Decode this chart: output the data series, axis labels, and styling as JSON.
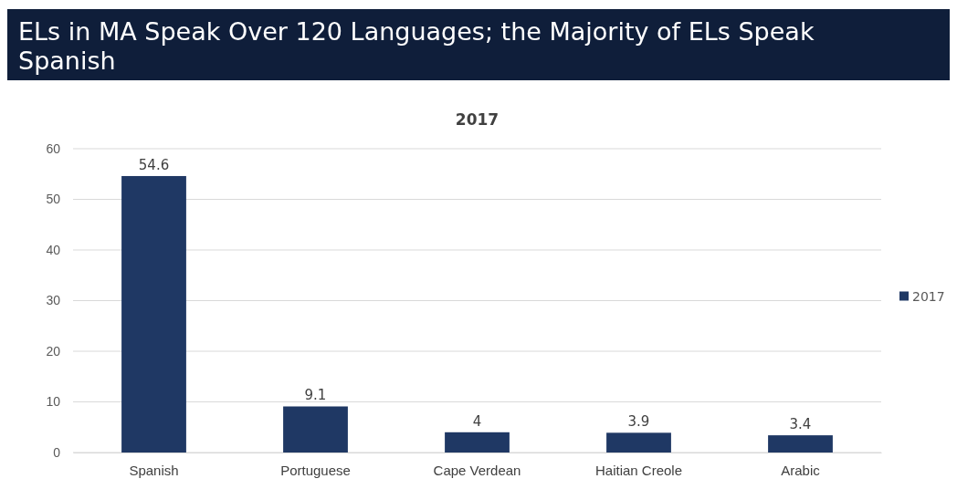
{
  "chart_data": {
    "type": "bar",
    "title": "ELs in MA Speak Over 120 Languages; the Majority of ELs Speak Spanish",
    "subtitle": "2017",
    "categories": [
      "Spanish",
      "Portuguese",
      "Cape Verdean",
      "Haitian Creole",
      "Arabic"
    ],
    "series": [
      {
        "name": "2017",
        "color": "#1f3864",
        "values": [
          54.6,
          9.1,
          4,
          3.9,
          3.4
        ]
      }
    ],
    "ylim": [
      0,
      60
    ],
    "yticks": [
      0,
      10,
      20,
      30,
      40,
      50,
      60
    ],
    "grid": "y",
    "legend": "right",
    "data_labels": true
  }
}
